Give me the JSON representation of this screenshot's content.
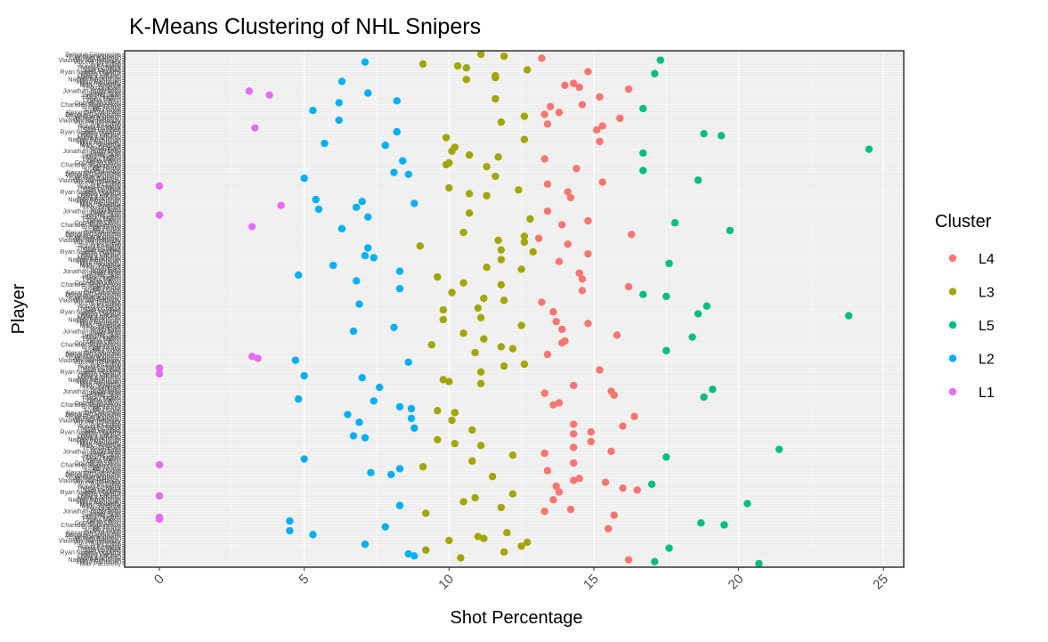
{
  "chart_data": {
    "type": "scatter",
    "title": "K-Means Clustering of NHL Snipers",
    "xlabel": "Shot Percentage",
    "ylabel": "Player",
    "xlim": [
      -1.2,
      25.7
    ],
    "xticks": [
      0,
      5,
      10,
      15,
      20,
      25
    ],
    "grid": true,
    "legend_title": "Cluster",
    "legend_position": "right",
    "series": [
      {
        "name": "L4",
        "color": "#F8766D"
      },
      {
        "name": "L3",
        "color": "#A3A500"
      },
      {
        "name": "L5",
        "color": "#00BF7D"
      },
      {
        "name": "L2",
        "color": "#00B0F6"
      },
      {
        "name": "L1",
        "color": "#E76BF3"
      }
    ],
    "y_tick_labels_visible": [
      "Zemgus Girgensons",
      "Yegor Sharangovich",
      "William Karlsson",
      "Vladislav Namestnikov",
      "Vincent Trocheck",
      "Tyler Toffoli",
      "Travis Konecny",
      "Thomas Chabot",
      "Sam Reinhart",
      "Ryan Nugent-Hopkins",
      "Phillip Danault",
      "Oskar Lindblom",
      "Nikita Kucherov",
      "Nathan MacKinnon",
      "Mikko Rantanen",
      "Max Pacioretty",
      "Mark Scheifele",
      "Leon Draisaitl",
      "Kevin Fiala",
      "Jonathan Huberdeau",
      "Jesper Bratt",
      "Jared McCann",
      "Jack Hughes",
      "Evgeni Malkin",
      "Dylan Larkin",
      "Connor McDavid",
      "Chandler Stephenson",
      "Brayden Point",
      "Bo Horvat",
      "Andrew Copp",
      "Alexander Ovechkin"
    ],
    "points": [
      [
        11.1,
        "L3"
      ],
      [
        11.9,
        "L3"
      ],
      [
        13.2,
        "L4"
      ],
      [
        17.3,
        "L5"
      ],
      [
        7.1,
        "L2"
      ],
      [
        9.1,
        "L3"
      ],
      [
        10.3,
        "L3"
      ],
      [
        10.6,
        "L3"
      ],
      [
        12.7,
        "L3"
      ],
      [
        14.8,
        "L4"
      ],
      [
        17.1,
        "L5"
      ],
      [
        11.6,
        "L3"
      ],
      [
        11.6,
        "L3"
      ],
      [
        10.6,
        "L3"
      ],
      [
        6.3,
        "L2"
      ],
      [
        14.3,
        "L4"
      ],
      [
        14.0,
        "L4"
      ],
      [
        14.5,
        "L4"
      ],
      [
        16.2,
        "L4"
      ],
      [
        3.1,
        "L1"
      ],
      [
        7.2,
        "L2"
      ],
      [
        3.8,
        "L1"
      ],
      [
        15.2,
        "L4"
      ],
      [
        11.6,
        "L3"
      ],
      [
        8.2,
        "L2"
      ],
      [
        6.2,
        "L2"
      ],
      [
        14.6,
        "L4"
      ],
      [
        13.5,
        "L4"
      ],
      [
        16.7,
        "L5"
      ],
      [
        5.3,
        "L2"
      ],
      [
        13.8,
        "L4"
      ],
      [
        13.3,
        "L4"
      ],
      [
        12.6,
        "L3"
      ],
      [
        15.9,
        "L4"
      ],
      [
        6.2,
        "L2"
      ],
      [
        11.8,
        "L3"
      ],
      [
        13.4,
        "L4"
      ],
      [
        15.3,
        "L4"
      ],
      [
        3.3,
        "L1"
      ],
      [
        15.1,
        "L4"
      ],
      [
        8.2,
        "L2"
      ],
      [
        18.8,
        "L5"
      ],
      [
        19.4,
        "L5"
      ],
      [
        9.9,
        "L3"
      ],
      [
        12.6,
        "L3"
      ],
      [
        15.2,
        "L4"
      ],
      [
        5.7,
        "L2"
      ],
      [
        7.8,
        "L2"
      ],
      [
        10.2,
        "L3"
      ],
      [
        24.5,
        "L5"
      ],
      [
        10.1,
        "L3"
      ],
      [
        16.7,
        "L5"
      ],
      [
        10.7,
        "L3"
      ],
      [
        11.7,
        "L3"
      ],
      [
        13.3,
        "L4"
      ],
      [
        8.4,
        "L2"
      ],
      [
        10.0,
        "L3"
      ],
      [
        9.9,
        "L3"
      ],
      [
        11.3,
        "L3"
      ],
      [
        14.4,
        "L4"
      ],
      [
        16.7,
        "L5"
      ],
      [
        8.1,
        "L2"
      ],
      [
        8.6,
        "L2"
      ],
      [
        11.6,
        "L3"
      ],
      [
        5.0,
        "L2"
      ],
      [
        18.6,
        "L5"
      ],
      [
        15.3,
        "L4"
      ],
      [
        13.4,
        "L4"
      ],
      [
        0.0,
        "L1"
      ],
      [
        10.0,
        "L3"
      ],
      [
        12.4,
        "L3"
      ],
      [
        14.1,
        "L4"
      ],
      [
        10.7,
        "L3"
      ],
      [
        11.3,
        "L3"
      ],
      [
        14.2,
        "L4"
      ],
      [
        5.4,
        "L2"
      ],
      [
        7.0,
        "L2"
      ],
      [
        8.8,
        "L2"
      ],
      [
        4.2,
        "L1"
      ],
      [
        6.8,
        "L2"
      ],
      [
        5.5,
        "L2"
      ],
      [
        13.4,
        "L4"
      ],
      [
        10.7,
        "L3"
      ],
      [
        0.0,
        "L1"
      ],
      [
        7.2,
        "L2"
      ],
      [
        12.8,
        "L3"
      ],
      [
        14.8,
        "L4"
      ],
      [
        17.8,
        "L5"
      ],
      [
        13.9,
        "L4"
      ],
      [
        3.2,
        "L1"
      ],
      [
        6.3,
        "L2"
      ],
      [
        19.7,
        "L5"
      ],
      [
        10.5,
        "L3"
      ],
      [
        16.3,
        "L4"
      ],
      [
        12.6,
        "L3"
      ],
      [
        13.1,
        "L4"
      ],
      [
        11.7,
        "L3"
      ],
      [
        12.6,
        "L3"
      ],
      [
        14.1,
        "L4"
      ],
      [
        9.0,
        "L3"
      ],
      [
        7.2,
        "L2"
      ],
      [
        11.8,
        "L3"
      ],
      [
        12.9,
        "L3"
      ],
      [
        14.8,
        "L4"
      ],
      [
        7.1,
        "L2"
      ],
      [
        7.4,
        "L2"
      ],
      [
        11.8,
        "L3"
      ],
      [
        13.8,
        "L4"
      ],
      [
        17.6,
        "L5"
      ],
      [
        6.0,
        "L2"
      ],
      [
        11.3,
        "L3"
      ],
      [
        12.5,
        "L3"
      ],
      [
        8.3,
        "L2"
      ],
      [
        14.5,
        "L4"
      ],
      [
        4.8,
        "L2"
      ],
      [
        9.6,
        "L3"
      ],
      [
        14.6,
        "L4"
      ],
      [
        6.8,
        "L2"
      ],
      [
        10.5,
        "L3"
      ],
      [
        11.8,
        "L3"
      ],
      [
        16.2,
        "L4"
      ],
      [
        8.3,
        "L2"
      ],
      [
        14.6,
        "L4"
      ],
      [
        10.1,
        "L3"
      ],
      [
        16.7,
        "L5"
      ],
      [
        17.5,
        "L5"
      ],
      [
        11.2,
        "L3"
      ],
      [
        11.9,
        "L3"
      ],
      [
        13.2,
        "L4"
      ],
      [
        6.9,
        "L2"
      ],
      [
        18.9,
        "L5"
      ],
      [
        11.0,
        "L3"
      ],
      [
        9.8,
        "L3"
      ],
      [
        13.6,
        "L4"
      ],
      [
        18.6,
        "L5"
      ],
      [
        23.8,
        "L5"
      ],
      [
        11.1,
        "L3"
      ],
      [
        9.8,
        "L3"
      ],
      [
        13.7,
        "L4"
      ],
      [
        14.8,
        "L4"
      ],
      [
        12.5,
        "L3"
      ],
      [
        8.1,
        "L2"
      ],
      [
        13.9,
        "L4"
      ],
      [
        6.7,
        "L2"
      ],
      [
        10.5,
        "L3"
      ],
      [
        15.8,
        "L4"
      ],
      [
        18.4,
        "L5"
      ],
      [
        11.2,
        "L3"
      ],
      [
        14.0,
        "L4"
      ],
      [
        13.9,
        "L4"
      ],
      [
        9.4,
        "L3"
      ],
      [
        11.8,
        "L3"
      ],
      [
        12.2,
        "L3"
      ],
      [
        17.5,
        "L5"
      ],
      [
        10.9,
        "L3"
      ],
      [
        13.4,
        "L4"
      ],
      [
        3.2,
        "L1"
      ],
      [
        3.4,
        "L1"
      ],
      [
        4.7,
        "L2"
      ],
      [
        8.6,
        "L2"
      ],
      [
        12.6,
        "L3"
      ],
      [
        11.9,
        "L3"
      ],
      [
        0.0,
        "L1"
      ],
      [
        15.2,
        "L4"
      ],
      [
        11.1,
        "L3"
      ],
      [
        0.0,
        "L1"
      ],
      [
        5.0,
        "L2"
      ],
      [
        7.0,
        "L2"
      ],
      [
        9.8,
        "L3"
      ],
      [
        10.0,
        "L3"
      ],
      [
        11.1,
        "L3"
      ],
      [
        14.3,
        "L4"
      ],
      [
        7.6,
        "L2"
      ],
      [
        19.1,
        "L5"
      ],
      [
        15.6,
        "L4"
      ],
      [
        13.3,
        "L4"
      ],
      [
        15.7,
        "L4"
      ],
      [
        18.8,
        "L5"
      ],
      [
        4.8,
        "L2"
      ],
      [
        7.4,
        "L2"
      ],
      [
        13.8,
        "L4"
      ],
      [
        13.6,
        "L4"
      ],
      [
        8.3,
        "L2"
      ],
      [
        8.7,
        "L2"
      ],
      [
        9.6,
        "L3"
      ],
      [
        10.2,
        "L3"
      ],
      [
        6.5,
        "L2"
      ],
      [
        16.4,
        "L4"
      ],
      [
        8.7,
        "L2"
      ],
      [
        10.1,
        "L3"
      ],
      [
        6.9,
        "L2"
      ],
      [
        14.3,
        "L4"
      ],
      [
        16.0,
        "L4"
      ],
      [
        8.8,
        "L2"
      ],
      [
        10.8,
        "L3"
      ],
      [
        14.9,
        "L4"
      ],
      [
        14.3,
        "L4"
      ],
      [
        6.7,
        "L2"
      ],
      [
        7.1,
        "L2"
      ],
      [
        9.6,
        "L3"
      ],
      [
        14.9,
        "L4"
      ],
      [
        10.2,
        "L3"
      ],
      [
        11.1,
        "L3"
      ],
      [
        14.3,
        "L4"
      ],
      [
        21.4,
        "L5"
      ],
      [
        15.6,
        "L4"
      ],
      [
        13.3,
        "L4"
      ],
      [
        12.2,
        "L3"
      ],
      [
        17.5,
        "L5"
      ],
      [
        5.0,
        "L2"
      ],
      [
        10.8,
        "L3"
      ],
      [
        14.3,
        "L4"
      ],
      [
        0.0,
        "L1"
      ],
      [
        9.1,
        "L3"
      ],
      [
        8.3,
        "L2"
      ],
      [
        13.4,
        "L4"
      ],
      [
        7.3,
        "L2"
      ],
      [
        8.0,
        "L2"
      ],
      [
        11.5,
        "L3"
      ],
      [
        14.5,
        "L4"
      ],
      [
        14.3,
        "L4"
      ],
      [
        15.4,
        "L4"
      ],
      [
        17.0,
        "L5"
      ],
      [
        13.7,
        "L4"
      ],
      [
        16.0,
        "L4"
      ],
      [
        16.5,
        "L4"
      ],
      [
        13.8,
        "L4"
      ],
      [
        12.2,
        "L3"
      ],
      [
        0.0,
        "L1"
      ],
      [
        10.9,
        "L3"
      ],
      [
        13.6,
        "L4"
      ],
      [
        10.5,
        "L3"
      ],
      [
        20.3,
        "L5"
      ],
      [
        8.3,
        "L2"
      ],
      [
        11.8,
        "L3"
      ],
      [
        14.2,
        "L4"
      ],
      [
        13.3,
        "L4"
      ],
      [
        9.2,
        "L3"
      ],
      [
        15.7,
        "L4"
      ],
      [
        0.0,
        "L1"
      ],
      [
        0.0,
        "L1"
      ],
      [
        4.5,
        "L2"
      ],
      [
        18.7,
        "L5"
      ],
      [
        19.5,
        "L5"
      ],
      [
        7.8,
        "L2"
      ],
      [
        15.5,
        "L4"
      ],
      [
        4.5,
        "L2"
      ],
      [
        12.0,
        "L3"
      ],
      [
        5.3,
        "L2"
      ],
      [
        11.0,
        "L3"
      ],
      [
        11.2,
        "L3"
      ],
      [
        10.0,
        "L3"
      ],
      [
        12.7,
        "L3"
      ],
      [
        7.1,
        "L2"
      ],
      [
        12.5,
        "L3"
      ],
      [
        17.6,
        "L5"
      ],
      [
        9.2,
        "L3"
      ],
      [
        11.9,
        "L3"
      ],
      [
        8.6,
        "L2"
      ],
      [
        8.8,
        "L2"
      ],
      [
        10.4,
        "L3"
      ],
      [
        16.2,
        "L4"
      ],
      [
        17.1,
        "L5"
      ],
      [
        20.7,
        "L5"
      ]
    ]
  }
}
